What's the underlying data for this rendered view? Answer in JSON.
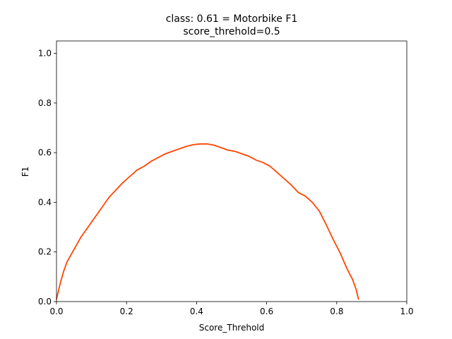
{
  "chart_data": {
    "type": "line",
    "title_line1": "class: 0.61 = Motorbike F1",
    "title_line2": "score_threhold=0.5",
    "xlabel": "Score_Threhold",
    "ylabel": "F1",
    "xlim": [
      0.0,
      1.0
    ],
    "ylim": [
      0.0,
      1.05
    ],
    "xticks": [
      "0.0",
      "0.2",
      "0.4",
      "0.6",
      "0.8",
      "1.0"
    ],
    "yticks": [
      "0.0",
      "0.2",
      "0.4",
      "0.6",
      "0.8",
      "1.0"
    ],
    "grid": false,
    "series": [
      {
        "color": "#ff4500",
        "x": [
          0.0,
          0.01,
          0.02,
          0.03,
          0.05,
          0.07,
          0.09,
          0.11,
          0.13,
          0.15,
          0.17,
          0.19,
          0.21,
          0.23,
          0.25,
          0.27,
          0.29,
          0.31,
          0.33,
          0.35,
          0.37,
          0.39,
          0.41,
          0.43,
          0.45,
          0.47,
          0.49,
          0.51,
          0.53,
          0.55,
          0.57,
          0.59,
          0.61,
          0.63,
          0.65,
          0.67,
          0.69,
          0.71,
          0.73,
          0.75,
          0.77,
          0.79,
          0.81,
          0.83,
          0.845,
          0.855,
          0.862
        ],
        "y": [
          0.01,
          0.07,
          0.12,
          0.16,
          0.21,
          0.26,
          0.3,
          0.34,
          0.38,
          0.42,
          0.45,
          0.48,
          0.505,
          0.53,
          0.545,
          0.565,
          0.58,
          0.595,
          0.605,
          0.615,
          0.625,
          0.632,
          0.635,
          0.635,
          0.63,
          0.62,
          0.61,
          0.605,
          0.595,
          0.585,
          0.57,
          0.56,
          0.545,
          0.52,
          0.495,
          0.47,
          0.44,
          0.425,
          0.4,
          0.365,
          0.31,
          0.25,
          0.195,
          0.13,
          0.09,
          0.05,
          0.01
        ]
      }
    ]
  }
}
